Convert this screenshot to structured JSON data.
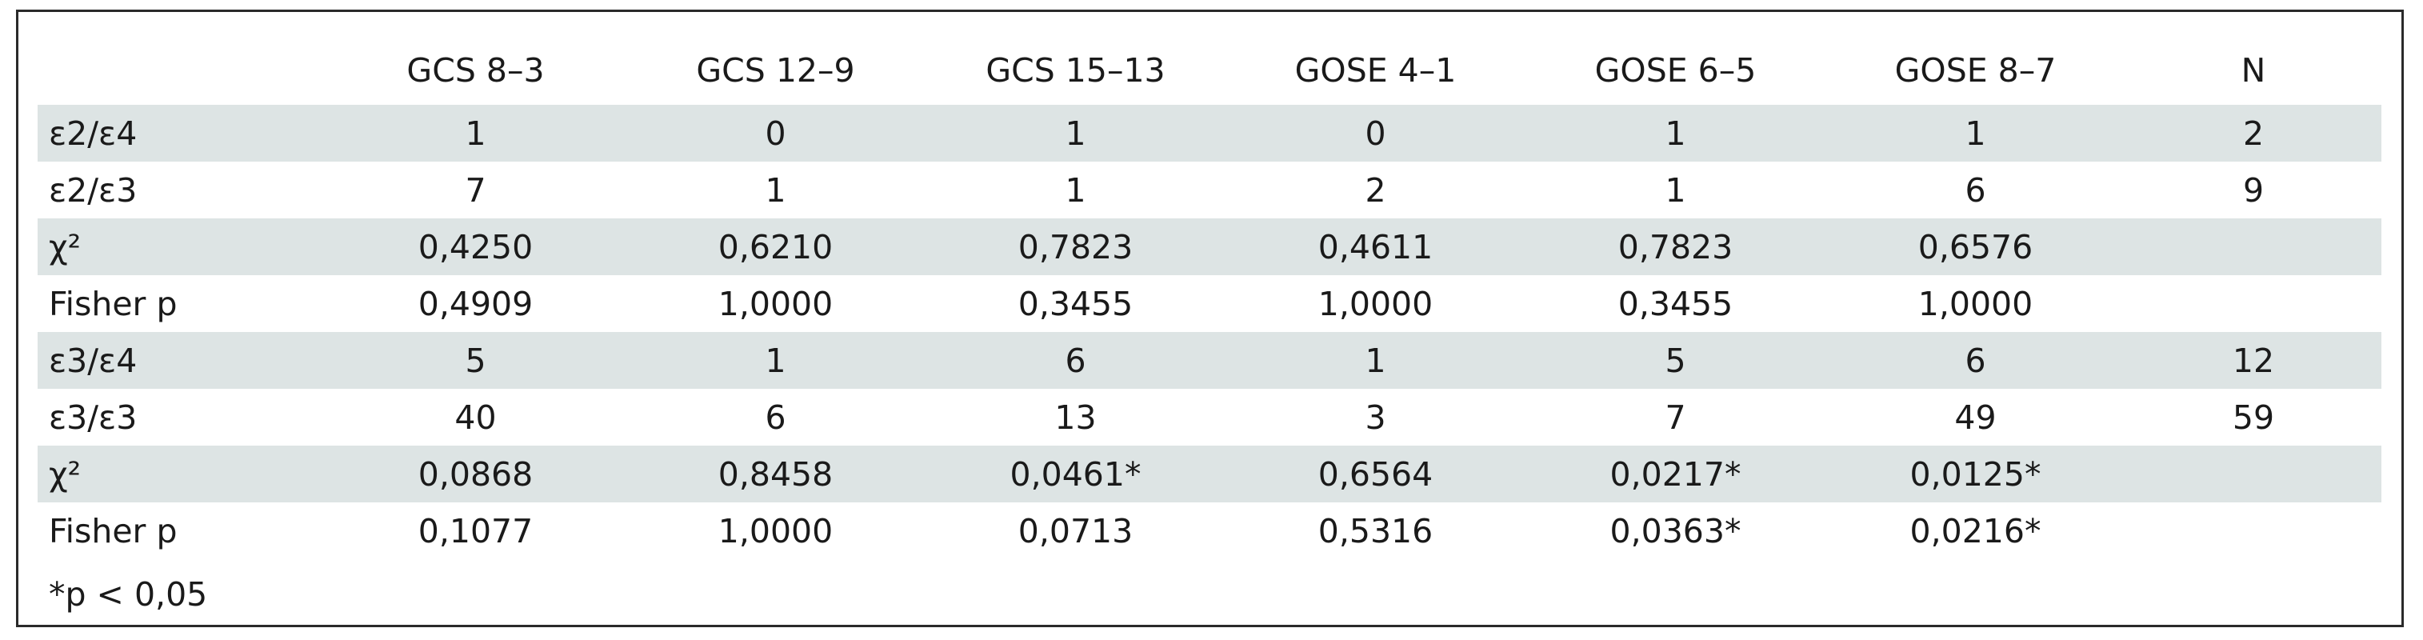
{
  "table": {
    "columns": [
      "",
      "GCS 8–3",
      "GCS 12–9",
      "GCS 15–13",
      "GOSE 4–1",
      "GOSE 6–5",
      "GOSE 8–7",
      "N"
    ],
    "rows": [
      {
        "label": "ε2/ε4",
        "shaded": true,
        "cells": [
          "1",
          "0",
          "1",
          "0",
          "1",
          "1",
          "2"
        ]
      },
      {
        "label": "ε2/ε3",
        "shaded": false,
        "cells": [
          "7",
          "1",
          "1",
          "2",
          "1",
          "6",
          "9"
        ]
      },
      {
        "label": "χ²",
        "shaded": true,
        "cells": [
          "0,4250",
          "0,6210",
          "0,7823",
          "0,4611",
          "0,7823",
          "0,6576",
          ""
        ]
      },
      {
        "label": "Fisher p",
        "shaded": false,
        "cells": [
          "0,4909",
          "1,0000",
          "0,3455",
          "1,0000",
          "0,3455",
          "1,0000",
          ""
        ]
      },
      {
        "label": "ε3/ε4",
        "shaded": true,
        "cells": [
          "5",
          "1",
          "6",
          "1",
          "5",
          "6",
          "12"
        ]
      },
      {
        "label": "ε3/ε3",
        "shaded": false,
        "cells": [
          "40",
          "6",
          "13",
          "3",
          "7",
          "49",
          "59"
        ]
      },
      {
        "label": "χ²",
        "shaded": true,
        "cells": [
          "0,0868",
          "0,8458",
          "0,0461*",
          "0,6564",
          "0,0217*",
          "0,0125*",
          ""
        ]
      },
      {
        "label": "Fisher p",
        "shaded": false,
        "cells": [
          "0,1077",
          "1,0000",
          "0,0713",
          "0,5316",
          "0,0363*",
          "0,0216*",
          ""
        ]
      }
    ]
  },
  "footnote": "*p < 0,05",
  "colors": {
    "shade": "#dde4e4",
    "border": "#2a2a2a"
  }
}
